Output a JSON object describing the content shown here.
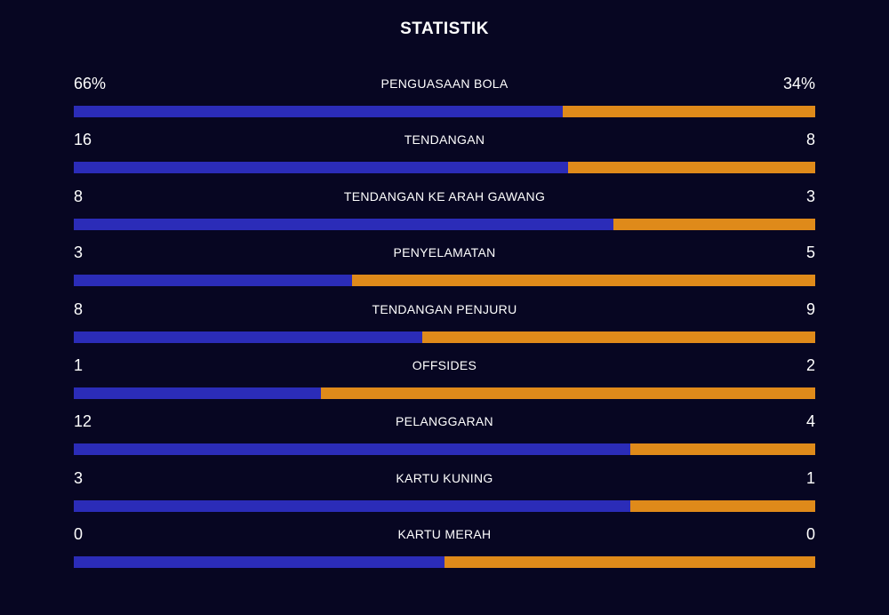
{
  "title": "STATISTIK",
  "colors": {
    "background": "#070622",
    "home": "#2b2cb8",
    "away": "#df8a1a"
  },
  "stats": [
    {
      "label": "PENGUASAAN BOLA",
      "home": "66%",
      "away": "34%",
      "home_value": 66,
      "away_value": 34
    },
    {
      "label": "TENDANGAN",
      "home": "16",
      "away": "8",
      "home_value": 16,
      "away_value": 8
    },
    {
      "label": "TENDANGAN KE ARAH GAWANG",
      "home": "8",
      "away": "3",
      "home_value": 8,
      "away_value": 3
    },
    {
      "label": "PENYELAMATAN",
      "home": "3",
      "away": "5",
      "home_value": 3,
      "away_value": 5
    },
    {
      "label": "TENDANGAN PENJURU",
      "home": "8",
      "away": "9",
      "home_value": 8,
      "away_value": 9
    },
    {
      "label": "OFFSIDES",
      "home": "1",
      "away": "2",
      "home_value": 1,
      "away_value": 2
    },
    {
      "label": "PELANGGARAN",
      "home": "12",
      "away": "4",
      "home_value": 12,
      "away_value": 4
    },
    {
      "label": "KARTU KUNING",
      "home": "3",
      "away": "1",
      "home_value": 3,
      "away_value": 1
    },
    {
      "label": "KARTU MERAH",
      "home": "0",
      "away": "0",
      "home_value": 0,
      "away_value": 0
    }
  ]
}
